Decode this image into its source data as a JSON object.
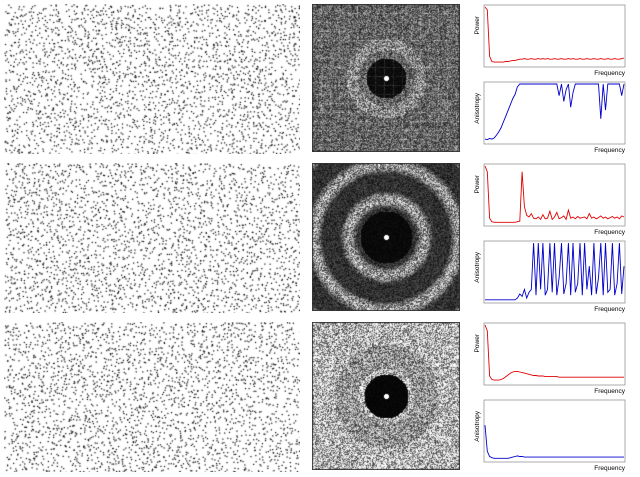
{
  "labels": {
    "power": "Power",
    "anisotropy": "Anisotropy",
    "frequency": "Frequency"
  },
  "colors": {
    "power_line": "#e00000",
    "anisotropy_line": "#0000cc",
    "points": "#000000",
    "spectrum_bg": "#000000",
    "spectrum_fg": "#ffffff"
  },
  "chart_data": [
    {
      "type": "line",
      "row": 1,
      "ylabel": "Power",
      "xlabel": "Frequency",
      "series": [
        {
          "values": [
            1.0,
            0.95,
            0.15,
            0.06,
            0.05,
            0.05,
            0.05,
            0.05,
            0.05,
            0.06,
            0.06,
            0.07,
            0.08,
            0.08,
            0.09,
            0.1,
            0.1,
            0.11,
            0.1,
            0.1,
            0.11,
            0.1,
            0.1,
            0.11,
            0.1,
            0.11,
            0.1,
            0.11,
            0.1,
            0.1,
            0.11,
            0.1,
            0.1,
            0.11,
            0.1,
            0.1,
            0.11,
            0.1,
            0.11,
            0.1,
            0.1,
            0.11,
            0.1,
            0.1,
            0.11,
            0.1,
            0.1,
            0.11,
            0.1,
            0.1,
            0.11,
            0.1,
            0.1,
            0.11,
            0.1,
            0.1,
            0.11,
            0.1,
            0.1,
            0.11,
            0.12
          ]
        }
      ]
    },
    {
      "type": "line",
      "row": 1,
      "ylabel": "Anisotropy",
      "xlabel": "Frequency",
      "series": [
        {
          "values": [
            0.05,
            0.04,
            0.06,
            0.05,
            0.07,
            0.12,
            0.18,
            0.25,
            0.35,
            0.45,
            0.55,
            0.65,
            0.75,
            0.82,
            0.95,
            1.0,
            1.0,
            1.0,
            1.0,
            1.0,
            1.0,
            1.0,
            1.0,
            1.0,
            1.0,
            1.0,
            1.0,
            1.0,
            1.0,
            1.0,
            1.0,
            1.0,
            0.8,
            1.0,
            0.7,
            0.9,
            1.0,
            0.6,
            0.85,
            1.0,
            1.0,
            1.0,
            1.0,
            1.0,
            1.0,
            1.0,
            1.0,
            1.0,
            1.0,
            1.0,
            0.4,
            1.0,
            0.55,
            1.0,
            1.0,
            1.0,
            1.0,
            1.0,
            1.0,
            0.8,
            1.0
          ]
        }
      ]
    },
    {
      "type": "line",
      "row": 2,
      "ylabel": "Power",
      "xlabel": "Frequency",
      "series": [
        {
          "values": [
            1.0,
            0.9,
            0.1,
            0.04,
            0.03,
            0.03,
            0.03,
            0.03,
            0.03,
            0.03,
            0.03,
            0.03,
            0.03,
            0.03,
            0.04,
            0.05,
            0.9,
            0.3,
            0.15,
            0.12,
            0.18,
            0.1,
            0.09,
            0.12,
            0.08,
            0.16,
            0.09,
            0.1,
            0.22,
            0.08,
            0.12,
            0.2,
            0.09,
            0.11,
            0.14,
            0.08,
            0.24,
            0.1,
            0.12,
            0.09,
            0.13,
            0.1,
            0.11,
            0.12,
            0.09,
            0.18,
            0.1,
            0.12,
            0.09,
            0.11,
            0.14,
            0.1,
            0.12,
            0.09,
            0.11,
            0.13,
            0.1,
            0.12,
            0.09,
            0.14,
            0.12
          ]
        }
      ]
    },
    {
      "type": "line",
      "row": 2,
      "ylabel": "Anisotropy",
      "xlabel": "Frequency",
      "series": [
        {
          "values": [
            0.02,
            0.02,
            0.02,
            0.02,
            0.02,
            0.02,
            0.02,
            0.02,
            0.02,
            0.02,
            0.02,
            0.02,
            0.02,
            0.02,
            0.05,
            0.12,
            0.08,
            0.2,
            0.05,
            0.15,
            0.2,
            1.0,
            0.1,
            1.0,
            0.2,
            1.0,
            0.1,
            0.2,
            1.0,
            0.15,
            1.0,
            0.1,
            0.4,
            1.0,
            0.12,
            0.3,
            1.0,
            0.1,
            1.0,
            0.15,
            0.3,
            1.0,
            0.1,
            1.0,
            0.2,
            0.6,
            0.1,
            1.0,
            0.12,
            0.4,
            1.0,
            0.1,
            1.0,
            0.15,
            0.2,
            1.0,
            0.1,
            0.3,
            1.0,
            0.12,
            0.6
          ]
        }
      ]
    },
    {
      "type": "line",
      "row": 3,
      "ylabel": "Power",
      "xlabel": "Frequency",
      "series": [
        {
          "values": [
            1.0,
            0.9,
            0.12,
            0.06,
            0.05,
            0.05,
            0.05,
            0.06,
            0.08,
            0.11,
            0.14,
            0.17,
            0.19,
            0.2,
            0.2,
            0.19,
            0.18,
            0.17,
            0.16,
            0.15,
            0.14,
            0.13,
            0.13,
            0.12,
            0.12,
            0.12,
            0.11,
            0.11,
            0.11,
            0.11,
            0.11,
            0.11,
            0.1,
            0.1,
            0.1,
            0.1,
            0.1,
            0.1,
            0.1,
            0.1,
            0.1,
            0.1,
            0.1,
            0.1,
            0.1,
            0.1,
            0.1,
            0.1,
            0.1,
            0.1,
            0.1,
            0.1,
            0.1,
            0.1,
            0.1,
            0.1,
            0.1,
            0.1,
            0.1,
            0.1,
            0.1
          ]
        }
      ]
    },
    {
      "type": "line",
      "row": 3,
      "ylabel": "Anisotropy",
      "xlabel": "Frequency",
      "series": [
        {
          "values": [
            0.6,
            0.15,
            0.06,
            0.04,
            0.03,
            0.03,
            0.03,
            0.03,
            0.03,
            0.03,
            0.03,
            0.04,
            0.05,
            0.06,
            0.07,
            0.06,
            0.06,
            0.05,
            0.05,
            0.05,
            0.05,
            0.05,
            0.05,
            0.05,
            0.05,
            0.05,
            0.05,
            0.05,
            0.05,
            0.05,
            0.05,
            0.05,
            0.05,
            0.05,
            0.05,
            0.05,
            0.05,
            0.05,
            0.05,
            0.05,
            0.05,
            0.05,
            0.05,
            0.05,
            0.05,
            0.05,
            0.05,
            0.05,
            0.05,
            0.05,
            0.05,
            0.05,
            0.05,
            0.05,
            0.05,
            0.05,
            0.05,
            0.05,
            0.05,
            0.05,
            0.05
          ]
        }
      ]
    }
  ]
}
